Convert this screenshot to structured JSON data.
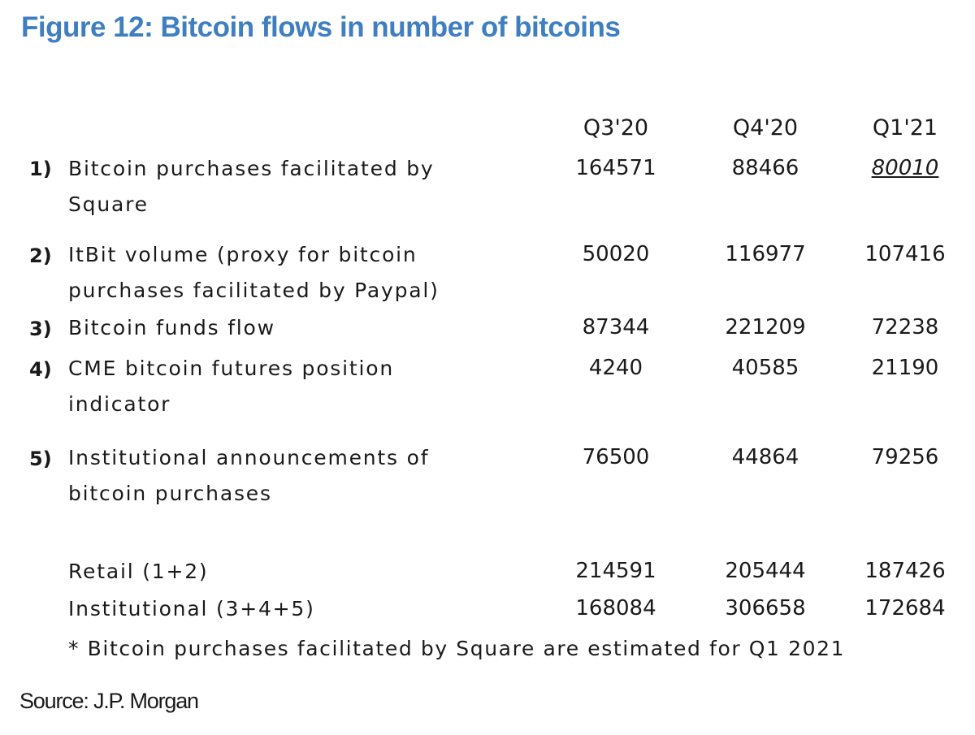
{
  "title": "Figure 12: Bitcoin flows in number of bitcoins",
  "columns": [
    "Q3'20",
    "Q4'20",
    "Q1'21"
  ],
  "rows": [
    {
      "num": "1)",
      "label": "Bitcoin purchases facilitated by Square",
      "values": [
        "164571",
        "88466",
        "80010"
      ]
    },
    {
      "num": "2)",
      "label": "ItBit volume (proxy for bitcoin purchases facilitated by Paypal)",
      "values": [
        "50020",
        "116977",
        "107416"
      ]
    },
    {
      "num": "3)",
      "label": "Bitcoin funds flow",
      "values": [
        "87344",
        "221209",
        "72238"
      ]
    },
    {
      "num": "4)",
      "label": "CME bitcoin futures position indicator",
      "values": [
        "4240",
        "40585",
        "21190"
      ]
    },
    {
      "num": "5)",
      "label": "Institutional announcements of bitcoin purchases",
      "values": [
        "76500",
        "44864",
        "79256"
      ]
    }
  ],
  "totals": [
    {
      "label": "Retail (1+2)",
      "values": [
        "214591",
        "205444",
        "187426"
      ]
    },
    {
      "label": "Institutional (3+4+5)",
      "values": [
        "168084",
        "306658",
        "172684"
      ]
    }
  ],
  "footnote": "* Bitcoin purchases facilitated by Square are estimated for Q1 2021",
  "source": "Source: J.P. Morgan",
  "colors": {
    "title": "#3f7fc1",
    "text": "#1a1a1a"
  }
}
